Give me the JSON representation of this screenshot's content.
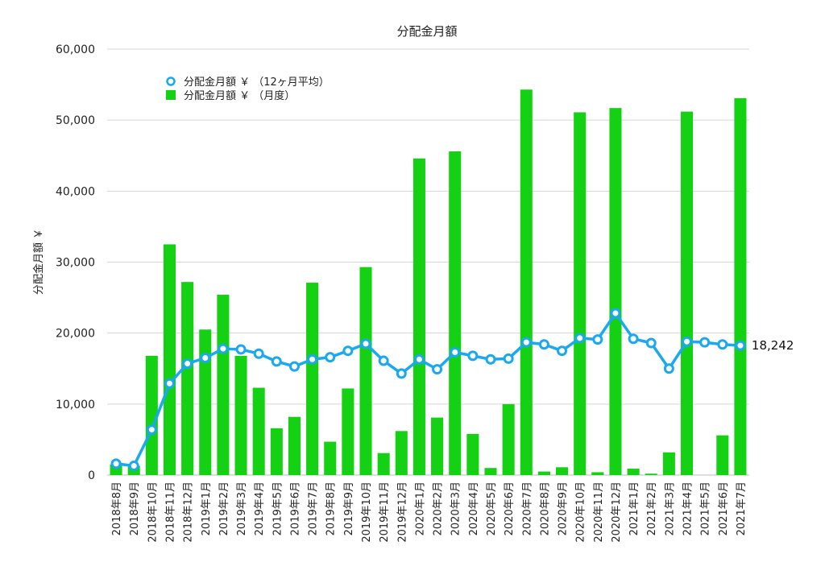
{
  "chart_data": {
    "type": "bar",
    "title": "分配金月額",
    "xlabel": "",
    "ylabel": "分配金月額 ￥",
    "ylim": [
      0,
      60000
    ],
    "yticks": [
      0,
      10000,
      20000,
      30000,
      40000,
      50000,
      60000
    ],
    "ytick_labels": [
      "0",
      "10,000",
      "20,000",
      "30,000",
      "40,000",
      "50,000",
      "60,000"
    ],
    "grid": true,
    "legend_placement": "top-left",
    "categories": [
      "2018年8月",
      "2018年9月",
      "2018年10月",
      "2018年11月",
      "2018年12月",
      "2019年1月",
      "2019年2月",
      "2019年3月",
      "2019年4月",
      "2019年5月",
      "2019年6月",
      "2019年7月",
      "2019年8月",
      "2019年9月",
      "2019年10月",
      "2019年11月",
      "2019年12月",
      "2020年1月",
      "2020年2月",
      "2020年3月",
      "2020年4月",
      "2020年5月",
      "2020年6月",
      "2020年7月",
      "2020年8月",
      "2020年9月",
      "2020年10月",
      "2020年11月",
      "2020年12月",
      "2021年1月",
      "2021年2月",
      "2021年3月",
      "2021年4月",
      "2021年5月",
      "2021年6月",
      "2021年7月"
    ],
    "series": [
      {
        "name": "分配金月額 ￥ （月度）",
        "kind": "bar",
        "color": "#14d114",
        "values": [
          1500,
          1300,
          16800,
          32500,
          27200,
          20500,
          25400,
          16800,
          12300,
          6600,
          8200,
          27100,
          4700,
          12200,
          29300,
          3100,
          6200,
          44600,
          8100,
          45600,
          5800,
          1000,
          10000,
          54300,
          500,
          1100,
          51100,
          400,
          51700,
          900,
          200,
          3200,
          51200,
          0,
          5600,
          53100
        ]
      },
      {
        "name": "分配金月額 ￥ （12ヶ月平均）",
        "kind": "line",
        "color": "#1aa8f0",
        "values": [
          1600,
          1300,
          6400,
          12900,
          15700,
          16500,
          17800,
          17700,
          17100,
          16000,
          15300,
          16300,
          16600,
          17500,
          18500,
          16100,
          14300,
          16300,
          14900,
          17300,
          16800,
          16300,
          16400,
          18700,
          18400,
          17500,
          19300,
          19100,
          22800,
          19200,
          18600,
          15000,
          18800,
          18700,
          18400,
          18242
        ]
      }
    ],
    "annotations": [
      {
        "text": "18,242",
        "category": "2021年7月",
        "value": 18242
      }
    ]
  }
}
